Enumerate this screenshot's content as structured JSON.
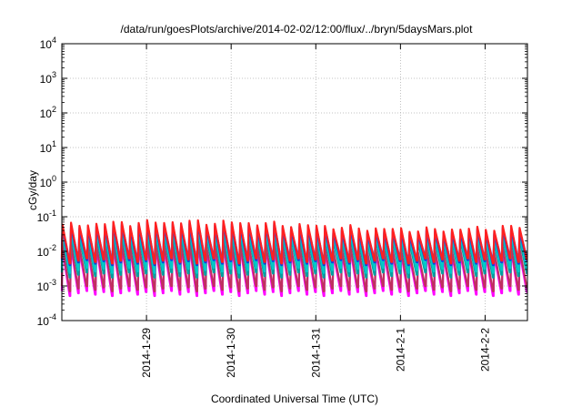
{
  "chart_data": {
    "type": "line",
    "title": "/data/run/goesPlots/archive/2014-02-02/12:00/flux/../bryn/5daysMars.plot",
    "xlabel": "Coordinated Universal Time (UTC)",
    "ylabel": "cGy/day",
    "yscale": "log",
    "ylim_exponent": [
      -4,
      4
    ],
    "y_ticks": [
      {
        "base": "10",
        "exp": "-4"
      },
      {
        "base": "10",
        "exp": "-3"
      },
      {
        "base": "10",
        "exp": "-2"
      },
      {
        "base": "10",
        "exp": "-1"
      },
      {
        "base": "10",
        "exp": "0"
      },
      {
        "base": "10",
        "exp": "1"
      },
      {
        "base": "10",
        "exp": "2"
      },
      {
        "base": "10",
        "exp": "3"
      },
      {
        "base": "10",
        "exp": "4"
      }
    ],
    "x_ticks": [
      "2014-1-29",
      "2014-1-30",
      "2014-1-31",
      "2014-2-1",
      "2014-2-2"
    ],
    "xlim_dates": [
      "2014-01-28T00:00",
      "2014-02-02T12:00"
    ],
    "x_tick_dates": [
      "2014-01-29",
      "2014-01-30",
      "2014-01-31",
      "2014-02-01",
      "2014-02-02"
    ],
    "grid": true,
    "legend": "none",
    "pattern": {
      "description_free": true,
      "teeth_per_day": 10,
      "peak_value": 0.05,
      "trough_value": 0.004,
      "peak_variation": [
        0.04,
        0.07
      ]
    },
    "series": [
      {
        "color": "#ff00ff",
        "peak_factor": 0.22,
        "trough_factor": 0.16
      },
      {
        "color": "#c03060",
        "peak_factor": 0.28,
        "trough_factor": 0.22
      },
      {
        "color": "#00a0a0",
        "peak_factor": 0.55,
        "trough_factor": 0.55
      },
      {
        "color": "#00c8c8",
        "peak_factor": 0.7,
        "trough_factor": 0.75
      },
      {
        "color": "#1040e0",
        "peak_factor": 0.9,
        "trough_factor": 1.25
      },
      {
        "color": "#3050ff",
        "peak_factor": 1.0,
        "trough_factor": 1.6
      },
      {
        "color": "#ff2020",
        "peak_factor": 1.12,
        "trough_factor": 1.4
      }
    ]
  }
}
